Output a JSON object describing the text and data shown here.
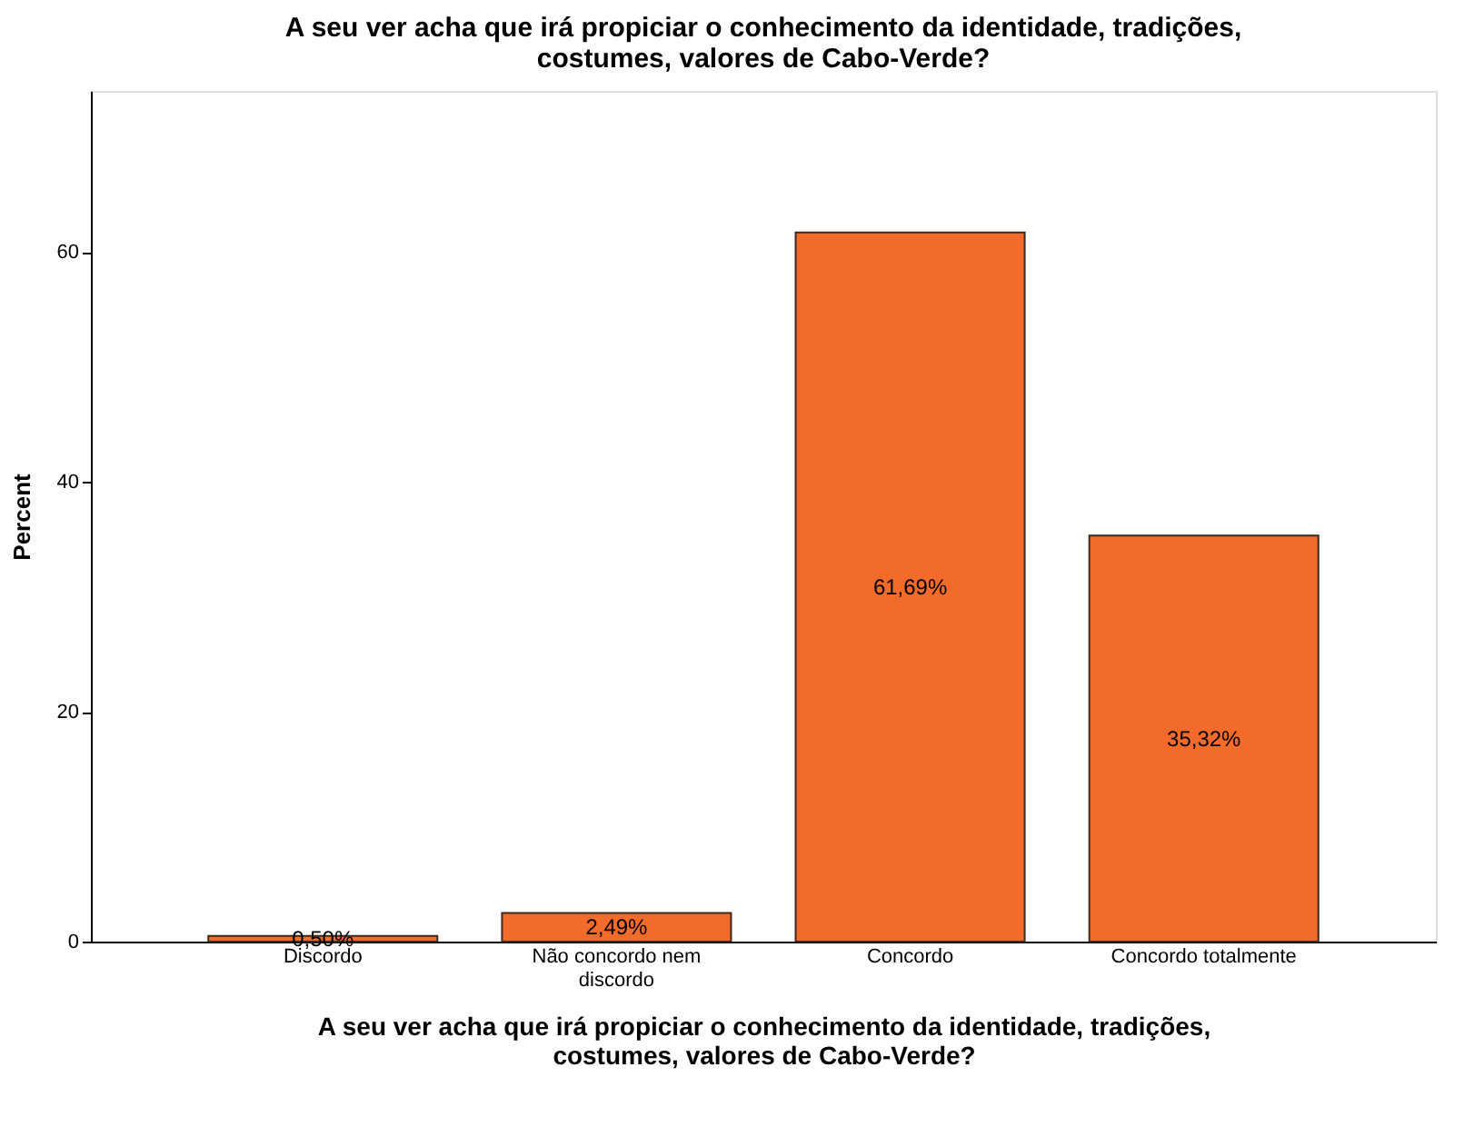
{
  "chart_data": {
    "type": "bar",
    "title": "A seu ver acha que irá propiciar o conhecimento da identidade, tradições, costumes, valores de Cabo-Verde?",
    "xlabel": "A seu ver acha que irá propiciar o conhecimento da identidade, tradições, costumes, valores de Cabo-Verde?",
    "ylabel": "Percent",
    "categories": [
      "Discordo",
      "Não concordo nem discordo",
      "Concordo",
      "Concordo totalmente"
    ],
    "values": [
      0.5,
      2.49,
      61.69,
      35.32
    ],
    "value_labels": [
      "0,50%",
      "2,49%",
      "61,69%",
      "35,32%"
    ],
    "color": "#f26b2a",
    "ylim": [
      0,
      74
    ],
    "yticks": [
      0,
      20,
      40,
      60
    ],
    "grid": false
  }
}
